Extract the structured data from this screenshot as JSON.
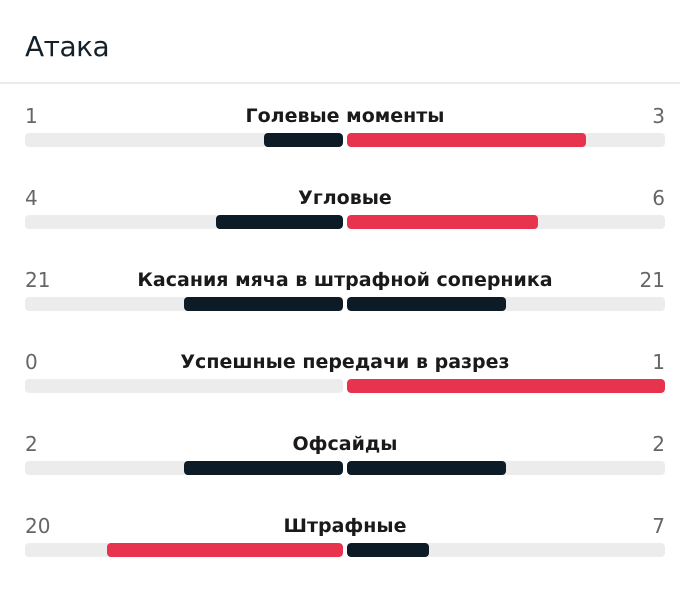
{
  "title": "Атака",
  "colors": {
    "leading": "#e8334f",
    "trailing": "#0d1b26",
    "track": "#ececec"
  },
  "stats": [
    {
      "label": "Голевые моменты",
      "home": "1",
      "away": "3"
    },
    {
      "label": "Угловые",
      "home": "4",
      "away": "6"
    },
    {
      "label": "Касания мяча в штрафной соперника",
      "home": "21",
      "away": "21"
    },
    {
      "label": "Успешные передачи в разрез",
      "home": "0",
      "away": "1"
    },
    {
      "label": "Офсайды",
      "home": "2",
      "away": "2"
    },
    {
      "label": "Штрафные",
      "home": "20",
      "away": "7"
    }
  ]
}
